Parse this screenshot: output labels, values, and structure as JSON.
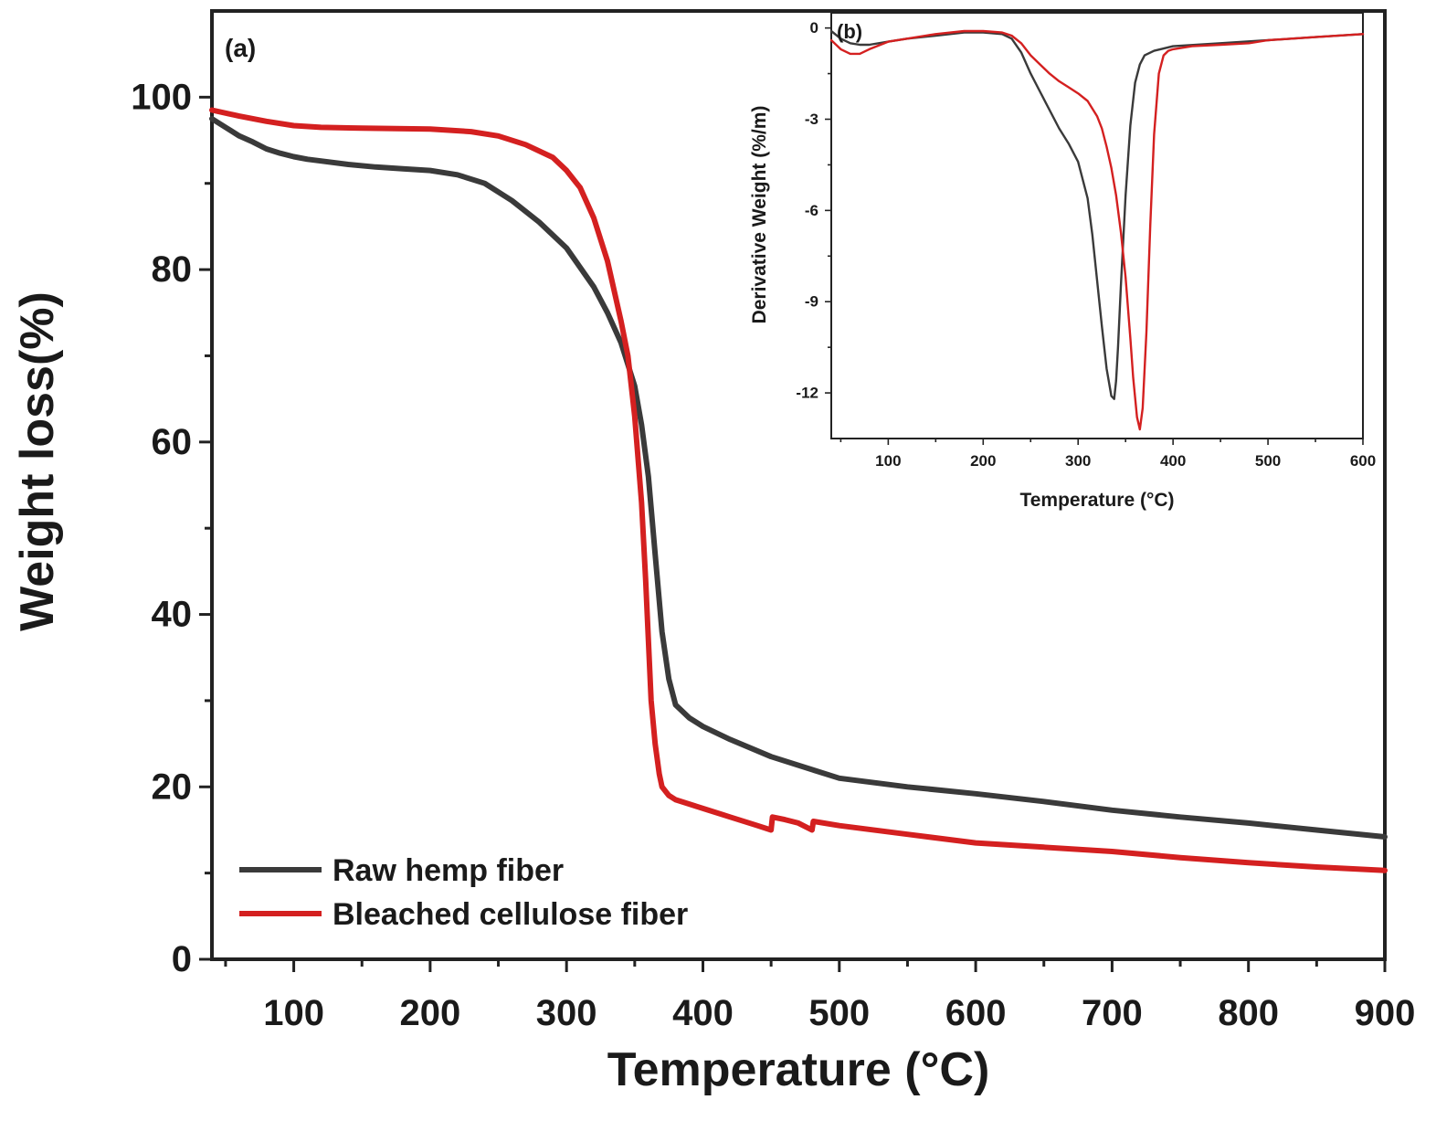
{
  "colors": {
    "raw": "#3a3a3a",
    "bleached": "#d42020",
    "axis": "#222222"
  },
  "chart_data": [
    {
      "id": "main",
      "type": "line",
      "panel_label": "(a)",
      "xlabel": "Temperature (°C)",
      "ylabel": "Weight loss(%)",
      "xlim": [
        40,
        900
      ],
      "ylim": [
        0,
        110
      ],
      "xticks": [
        100,
        200,
        300,
        400,
        500,
        600,
        700,
        800,
        900
      ],
      "yticks": [
        0,
        20,
        40,
        60,
        80,
        100
      ],
      "legend_position": "bottom-left",
      "series": [
        {
          "name": "Raw hemp fiber",
          "color_key": "raw",
          "x": [
            40,
            50,
            60,
            70,
            80,
            90,
            100,
            110,
            120,
            140,
            160,
            180,
            200,
            220,
            240,
            260,
            280,
            300,
            320,
            330,
            340,
            350,
            355,
            360,
            365,
            370,
            375,
            380,
            390,
            400,
            420,
            450,
            480,
            500,
            550,
            600,
            650,
            700,
            750,
            800,
            850,
            900
          ],
          "y": [
            97.5,
            96.5,
            95.5,
            94.8,
            94.0,
            93.5,
            93.1,
            92.8,
            92.6,
            92.2,
            91.9,
            91.7,
            91.5,
            91.0,
            90.0,
            88.0,
            85.5,
            82.5,
            78.0,
            75.0,
            71.5,
            66.5,
            62.0,
            56.0,
            47.0,
            38.0,
            32.5,
            29.5,
            28.0,
            27.0,
            25.5,
            23.5,
            22.0,
            21.0,
            20.0,
            19.2,
            18.3,
            17.3,
            16.5,
            15.8,
            15.0,
            14.2
          ]
        },
        {
          "name": "Bleached cellulose fiber",
          "color_key": "bleached",
          "x": [
            40,
            60,
            80,
            100,
            120,
            150,
            200,
            230,
            250,
            270,
            290,
            300,
            310,
            320,
            330,
            340,
            345,
            350,
            355,
            358,
            360,
            362,
            365,
            368,
            370,
            375,
            380,
            390,
            400,
            420,
            440,
            450,
            451,
            460,
            470,
            480,
            481,
            500,
            550,
            600,
            650,
            700,
            750,
            800,
            850,
            900
          ],
          "y": [
            98.5,
            97.8,
            97.2,
            96.7,
            96.5,
            96.4,
            96.3,
            96.0,
            95.5,
            94.5,
            93.0,
            91.5,
            89.5,
            86.0,
            81.0,
            74.0,
            70.0,
            63.0,
            53.0,
            44.0,
            37.0,
            30.0,
            25.0,
            21.5,
            20.0,
            19.0,
            18.5,
            18.0,
            17.5,
            16.5,
            15.5,
            15.0,
            16.5,
            16.2,
            15.8,
            15.0,
            16.0,
            15.5,
            14.5,
            13.5,
            13.0,
            12.5,
            11.8,
            11.2,
            10.7,
            10.3
          ]
        }
      ]
    },
    {
      "id": "inset",
      "type": "line",
      "panel_label": "(b)",
      "xlabel": "Temperature (°C)",
      "ylabel": "Derivative Weight (%/m)",
      "xlim": [
        40,
        600
      ],
      "ylim": [
        -13.5,
        0.5
      ],
      "xticks": [
        100,
        200,
        300,
        400,
        500,
        600
      ],
      "yticks": [
        0,
        -3,
        -6,
        -9,
        -12
      ],
      "ytick_labels": [
        "0",
        "-3",
        "-6",
        "-9",
        "-12"
      ],
      "series": [
        {
          "name": "Raw hemp fiber",
          "color_key": "raw",
          "x": [
            40,
            50,
            60,
            70,
            80,
            100,
            120,
            150,
            180,
            200,
            220,
            230,
            240,
            250,
            260,
            270,
            280,
            290,
            300,
            310,
            315,
            320,
            325,
            330,
            335,
            338,
            340,
            342,
            345,
            350,
            355,
            360,
            365,
            370,
            380,
            400,
            450,
            500,
            550,
            600
          ],
          "y": [
            -0.1,
            -0.35,
            -0.5,
            -0.55,
            -0.55,
            -0.45,
            -0.35,
            -0.25,
            -0.15,
            -0.15,
            -0.2,
            -0.35,
            -0.8,
            -1.5,
            -2.1,
            -2.7,
            -3.3,
            -3.8,
            -4.4,
            -5.6,
            -6.8,
            -8.3,
            -9.8,
            -11.2,
            -12.1,
            -12.2,
            -11.6,
            -10.5,
            -8.5,
            -5.5,
            -3.2,
            -1.8,
            -1.2,
            -0.9,
            -0.75,
            -0.6,
            -0.5,
            -0.4,
            -0.3,
            -0.2
          ]
        },
        {
          "name": "Bleached cellulose fiber",
          "color_key": "bleached",
          "x": [
            40,
            50,
            60,
            70,
            80,
            100,
            120,
            150,
            180,
            200,
            220,
            230,
            240,
            250,
            260,
            270,
            280,
            290,
            300,
            310,
            320,
            325,
            330,
            335,
            340,
            345,
            350,
            355,
            358,
            362,
            365,
            368,
            372,
            376,
            380,
            385,
            390,
            395,
            400,
            420,
            450,
            480,
            500,
            550,
            600
          ],
          "y": [
            -0.4,
            -0.7,
            -0.85,
            -0.85,
            -0.7,
            -0.45,
            -0.35,
            -0.2,
            -0.1,
            -0.1,
            -0.15,
            -0.25,
            -0.5,
            -0.9,
            -1.2,
            -1.5,
            -1.75,
            -1.95,
            -2.15,
            -2.4,
            -2.9,
            -3.3,
            -3.9,
            -4.6,
            -5.5,
            -6.7,
            -8.2,
            -10.2,
            -11.5,
            -12.8,
            -13.2,
            -12.5,
            -10.0,
            -6.5,
            -3.5,
            -1.5,
            -0.9,
            -0.75,
            -0.7,
            -0.6,
            -0.55,
            -0.5,
            -0.4,
            -0.3,
            -0.2
          ]
        }
      ]
    }
  ]
}
